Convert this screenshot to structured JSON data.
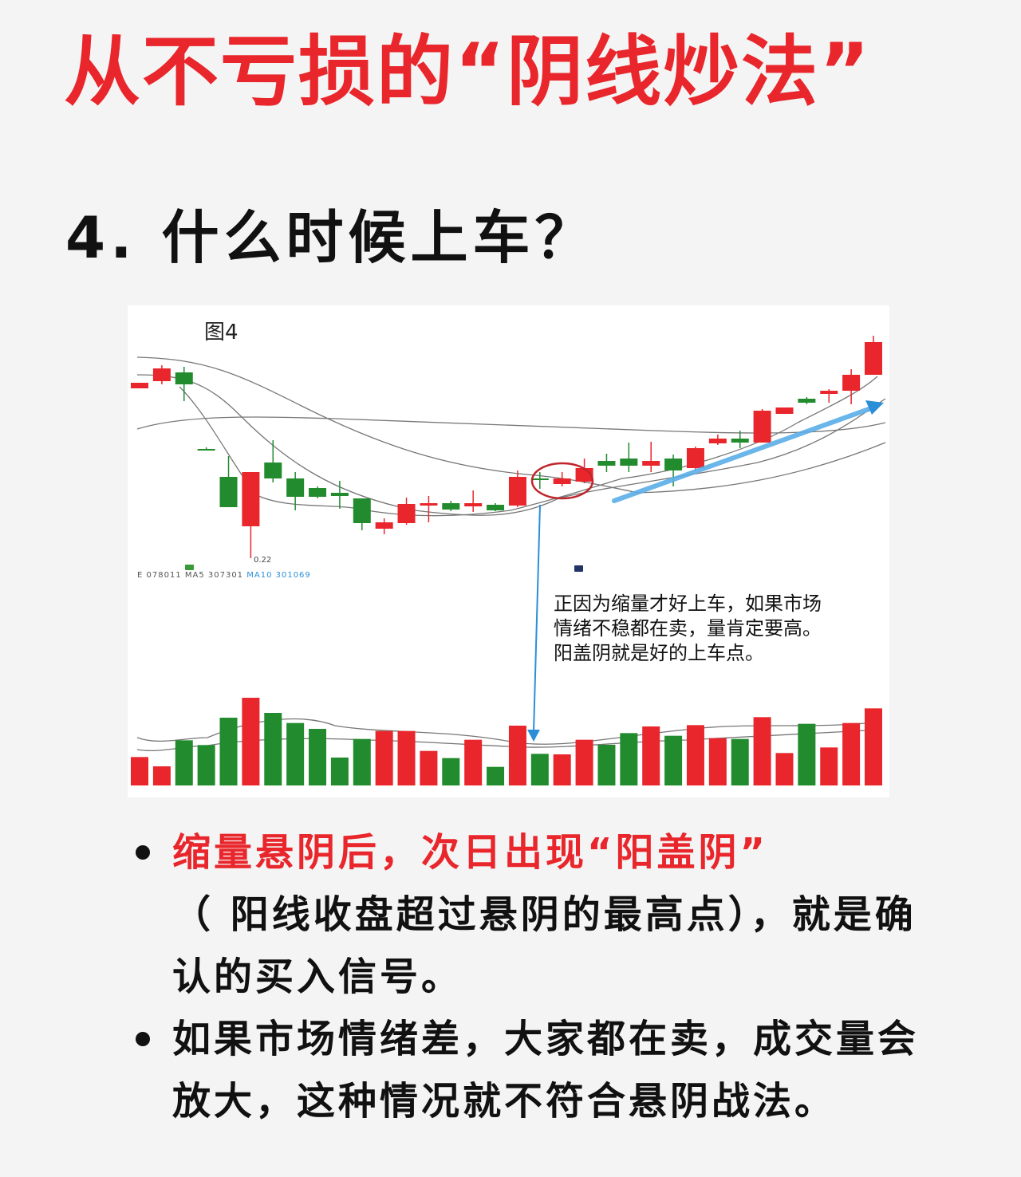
{
  "title": "从不亏损的“阴线炒法”",
  "subtitle": "4. 什么时候上车？",
  "figure": {
    "label": "图4",
    "low_label": "0.22",
    "legend": {
      "prefix": "E 078011",
      "ma5": "MA5 307301",
      "ma10": "MA10 301069"
    },
    "note_lines": [
      "正因为缩量才好上车，如果市场",
      "情绪不稳都在卖，量肯定要高。",
      "阳盖阴就是好的上车点。"
    ],
    "colors": {
      "up": "#e8262b",
      "down": "#228b2e",
      "arrow": "#2b8fd8",
      "circle": "#c0262b"
    }
  },
  "chart_data": {
    "type": "candlestick",
    "candles": [
      [
        21.3,
        22.0,
        22.0,
        21.3
      ],
      [
        22.2,
        23.8,
        24.2,
        21.8
      ],
      [
        23.3,
        21.8,
        24.0,
        19.7
      ],
      [
        13.7,
        13.7,
        13.9,
        13.7
      ],
      [
        10.2,
        6.4,
        12.8,
        6.4
      ],
      [
        4.0,
        10.8,
        10.8,
        0.0
      ],
      [
        12.0,
        10.0,
        14.8,
        9.5
      ],
      [
        10.0,
        7.7,
        10.8,
        6.0
      ],
      [
        8.8,
        7.7,
        9.0,
        7.5
      ],
      [
        8.2,
        7.8,
        9.7,
        6.2
      ],
      [
        7.5,
        4.4,
        7.5,
        3.5
      ],
      [
        3.7,
        4.5,
        5.0,
        3.0
      ],
      [
        4.4,
        6.8,
        7.6,
        4.2
      ],
      [
        6.6,
        6.9,
        7.8,
        4.5
      ],
      [
        6.9,
        6.1,
        7.2,
        5.9
      ],
      [
        6.5,
        6.9,
        8.5,
        5.8
      ],
      [
        6.7,
        6.0,
        6.9,
        5.9
      ],
      [
        6.6,
        10.2,
        11.0,
        6.4
      ],
      [
        10.0,
        9.8,
        10.8,
        8.7
      ],
      [
        9.3,
        10.0,
        10.8,
        9.0
      ],
      [
        9.6,
        11.3,
        12.5,
        9.4
      ],
      [
        12.2,
        11.6,
        13.1,
        10.8
      ],
      [
        12.5,
        11.6,
        14.5,
        10.8
      ],
      [
        11.6,
        12.2,
        14.6,
        10.8
      ],
      [
        12.5,
        11.0,
        13.0,
        9.0
      ],
      [
        11.3,
        13.8,
        14.0,
        11.0
      ],
      [
        14.4,
        15.0,
        15.5,
        14.2
      ],
      [
        15.0,
        14.5,
        16.0,
        13.8
      ],
      [
        14.5,
        18.5,
        18.7,
        14.5
      ],
      [
        18.1,
        18.9,
        18.9,
        18.1
      ],
      [
        20.0,
        19.5,
        20.2,
        19.3
      ],
      [
        20.6,
        21.0,
        21.2,
        19.5
      ],
      [
        21.0,
        23.0,
        23.7,
        19.3
      ],
      [
        23.0,
        27.1,
        27.9,
        23.0
      ]
    ],
    "candle_fields": [
      "open",
      "close",
      "high",
      "low"
    ],
    "volume": [
      107,
      72,
      170,
      152,
      255,
      330,
      273,
      235,
      213,
      105,
      175,
      205,
      205,
      130,
      103,
      172,
      70,
      225,
      119,
      117,
      172,
      153,
      197,
      222,
      187,
      227,
      178,
      175,
      257,
      122,
      232,
      143,
      235,
      290
    ],
    "volume_up": [
      1,
      1,
      0,
      0,
      0,
      1,
      0,
      0,
      0,
      0,
      0,
      1,
      1,
      1,
      0,
      1,
      0,
      1,
      0,
      1,
      1,
      0,
      0,
      1,
      0,
      1,
      1,
      0,
      1,
      1,
      0,
      1,
      1,
      1
    ],
    "highlight_candles": [
      19,
      20,
      21
    ],
    "signal_candle": 19,
    "trend_arrow": "up"
  },
  "bullets": [
    {
      "highlight": "缩量悬阴后，次日出现“阳盖阴”",
      "text": "（ 阳线收盘超过悬阴的最高点），就是确认的买入信号。"
    },
    {
      "highlight": "",
      "text": "如果市场情绪差，大家都在卖，成交量会放大，这种情况就不符合悬阴战法。"
    }
  ]
}
